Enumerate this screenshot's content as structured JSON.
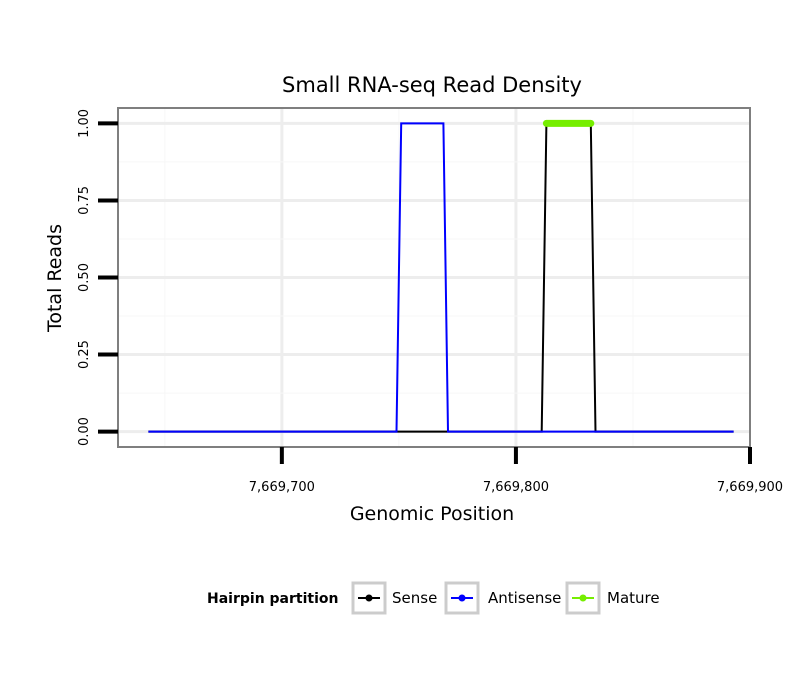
{
  "chart_data": {
    "type": "line",
    "title": "Small RNA-seq Read Density",
    "xlabel": "Genomic Position",
    "ylabel": "Total Reads",
    "xlim": [
      7669630,
      7669900
    ],
    "ylim": [
      -0.05,
      1.05
    ],
    "x_ticks": [
      {
        "value": 7669700,
        "label": "7,669,700"
      },
      {
        "value": 7669800,
        "label": "7,669,800"
      },
      {
        "value": 7669900,
        "label": "7,669,900"
      }
    ],
    "y_ticks": [
      {
        "value": 0,
        "label": "0.00"
      },
      {
        "value": 0.25,
        "label": "0.25"
      },
      {
        "value": 0.5,
        "label": "0.50"
      },
      {
        "value": 0.75,
        "label": "0.75"
      },
      {
        "value": 1.0,
        "label": "1.00"
      }
    ],
    "grid": true,
    "legend": {
      "title": "Hairpin partition",
      "position": "bottom"
    },
    "series": [
      {
        "name": "Sense",
        "color": "#000000",
        "x": [
          7669643,
          7669811,
          7669813,
          7669832,
          7669834,
          7669893
        ],
        "y": [
          0,
          0,
          1,
          1,
          0,
          0
        ]
      },
      {
        "name": "Antisense",
        "color": "#0000ff",
        "x": [
          7669643,
          7669749,
          7669751,
          7669769,
          7669771,
          7669811,
          7669813,
          7669832,
          7669834,
          7669893
        ],
        "y": [
          0,
          0,
          1,
          1,
          0,
          0,
          0,
          0,
          0,
          0
        ]
      },
      {
        "name": "Mature",
        "color": "#76ee00",
        "x": [
          7669813,
          7669832
        ],
        "y": [
          1,
          1
        ]
      }
    ]
  }
}
